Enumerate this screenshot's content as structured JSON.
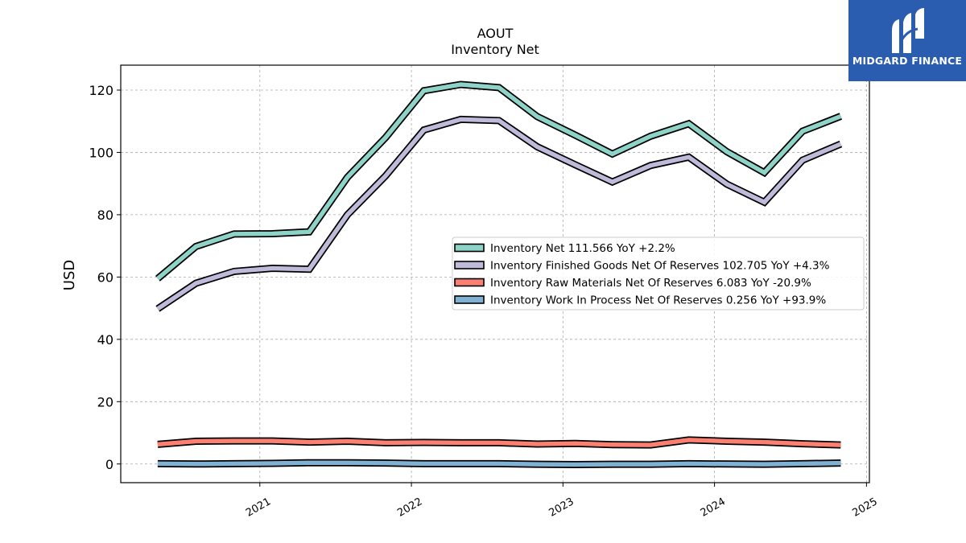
{
  "brand": {
    "name": "MIDGARD FINANCE",
    "color": "#2a5db0"
  },
  "chart_data": {
    "type": "line",
    "title": "AOUT",
    "subtitle": "Inventory Net",
    "ylabel": "USD",
    "xlabel": "",
    "ylim": [
      -6,
      128
    ],
    "xlim": [
      "2020-02-01",
      "2025-01-08"
    ],
    "grid": true,
    "legend_position": "center-right",
    "yticks": [
      0,
      20,
      40,
      60,
      80,
      100,
      120
    ],
    "xticks": [
      {
        "label": "2021",
        "date": "2021-01-01"
      },
      {
        "label": "2022",
        "date": "2022-01-01"
      },
      {
        "label": "2023",
        "date": "2023-01-01"
      },
      {
        "label": "2024",
        "date": "2024-01-01"
      },
      {
        "label": "2025",
        "date": "2025-01-01"
      }
    ],
    "x": [
      "2020-04-30",
      "2020-07-31",
      "2020-10-31",
      "2021-01-31",
      "2021-04-30",
      "2021-07-31",
      "2021-10-31",
      "2022-01-31",
      "2022-04-30",
      "2022-07-31",
      "2022-10-31",
      "2023-01-31",
      "2023-04-30",
      "2023-07-31",
      "2023-10-31",
      "2024-01-31",
      "2024-04-30",
      "2024-07-31",
      "2024-10-31"
    ],
    "series": [
      {
        "name": "Inventory Net",
        "legend": "Inventory Net  111.566 YoY +2.2%",
        "color": "#8dd3c7",
        "values": [
          59.5,
          69.8,
          73.8,
          73.9,
          74.5,
          92.0,
          104.8,
          119.8,
          121.8,
          120.8,
          111.5,
          105.5,
          99.5,
          105.2,
          109.2,
          100.2,
          93.5,
          106.8,
          111.6
        ]
      },
      {
        "name": "Inventory Finished Goods Net Of Reserves",
        "legend": "Inventory Finished Goods Net Of Reserves  102.705 YoY +4.3%",
        "color": "#bebada",
        "values": [
          49.8,
          58.0,
          61.8,
          62.8,
          62.5,
          80.0,
          92.5,
          107.2,
          110.6,
          110.2,
          101.8,
          96.0,
          90.5,
          95.8,
          98.5,
          89.8,
          84.0,
          97.5,
          102.7
        ]
      },
      {
        "name": "Inventory Raw Materials Net Of Reserves",
        "legend": "Inventory Raw Materials Net Of Reserves  6.083 YoY -20.9%",
        "color": "#fb8072",
        "values": [
          6.3,
          7.3,
          7.4,
          7.4,
          7.0,
          7.3,
          6.8,
          6.9,
          6.8,
          6.8,
          6.4,
          6.6,
          6.2,
          6.1,
          7.7,
          7.3,
          7.0,
          6.5,
          6.1
        ]
      },
      {
        "name": "Inventory Work In Process Net Of Reserves",
        "legend": "Inventory Work In Process Net Of Reserves  0.256 YoY +93.9%",
        "color": "#80b1d3",
        "values": [
          0.1,
          0.0,
          0.1,
          0.2,
          0.4,
          0.4,
          0.3,
          0.1,
          0.1,
          0.1,
          -0.1,
          -0.2,
          -0.1,
          -0.1,
          0.1,
          0.0,
          -0.1,
          0.1,
          0.3
        ]
      }
    ]
  }
}
